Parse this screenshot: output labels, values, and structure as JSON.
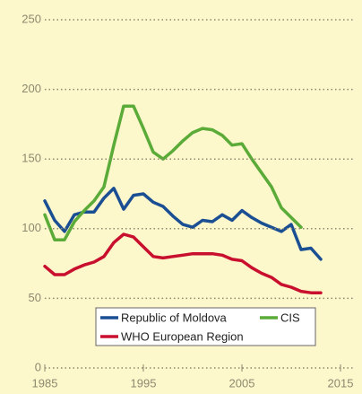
{
  "chart_data": {
    "type": "line",
    "x": [
      1985,
      1986,
      1987,
      1988,
      1989,
      1990,
      1991,
      1992,
      1993,
      1994,
      1995,
      1996,
      1997,
      1998,
      1999,
      2000,
      2001,
      2002,
      2003,
      2004,
      2005,
      2006,
      2007,
      2008,
      2009,
      2010,
      2011,
      2012,
      2013
    ],
    "series": [
      {
        "name": "Republic of Moldova",
        "color": "#1b4f93",
        "values": [
          120,
          106,
          98,
          110,
          112,
          112,
          122,
          129,
          114,
          124,
          125,
          119,
          116,
          109,
          103,
          101,
          106,
          105,
          110,
          106,
          113,
          108,
          104,
          101,
          98,
          103,
          85,
          86,
          78
        ]
      },
      {
        "name": "CIS",
        "color": "#5bab38",
        "values": [
          110,
          92,
          92,
          105,
          113,
          120,
          130,
          160,
          188,
          188,
          172,
          155,
          150,
          156,
          163,
          169,
          172,
          171,
          167,
          160,
          161,
          150,
          140,
          130,
          115,
          108,
          101,
          null,
          null
        ]
      },
      {
        "name": "WHO European Region",
        "color": "#c8102e",
        "values": [
          73,
          67,
          67,
          71,
          74,
          76,
          80,
          90,
          96,
          94,
          87,
          80,
          79,
          80,
          81,
          82,
          82,
          82,
          81,
          78,
          77,
          72,
          68,
          65,
          60,
          58,
          55,
          54,
          54
        ]
      }
    ],
    "xlim": [
      1985,
      2015
    ],
    "xticks": [
      1985,
      1995,
      2005,
      2015
    ],
    "ylim": [
      0,
      250
    ],
    "yticks": [
      0,
      50,
      100,
      150,
      200,
      250
    ],
    "grid": true
  }
}
